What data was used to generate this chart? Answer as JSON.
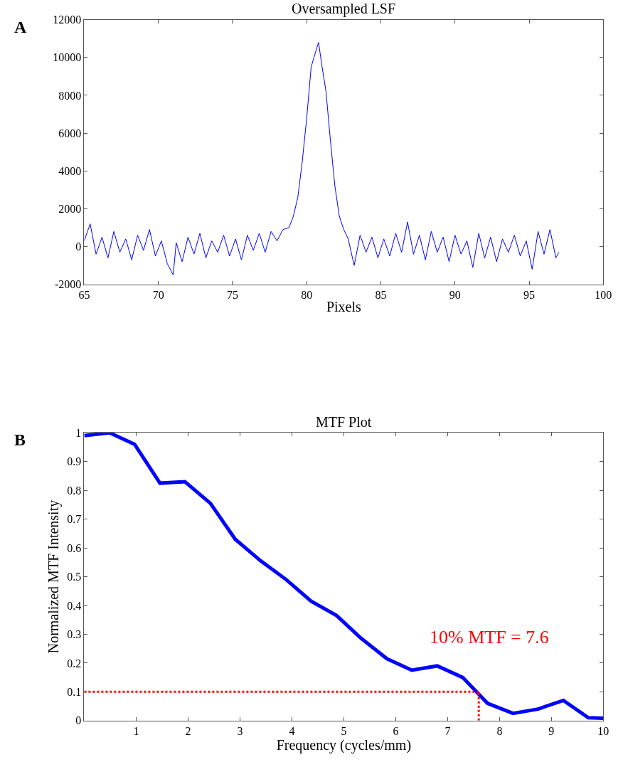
{
  "chart_data": [
    {
      "type": "line",
      "title": "Oversampled LSF",
      "xlabel": "Pixels",
      "annotations": [
        "A"
      ],
      "x": [
        65,
        65.4,
        65.8,
        66.2,
        66.6,
        67,
        67.4,
        67.8,
        68.2,
        68.6,
        69,
        69.4,
        69.8,
        70.2,
        70.6,
        71,
        71.2,
        71.6,
        72,
        72.4,
        72.8,
        73.2,
        73.6,
        74,
        74.4,
        74.8,
        75.2,
        75.6,
        76,
        76.4,
        76.8,
        77.2,
        77.6,
        78,
        78.4,
        78.8,
        79.1,
        79.4,
        79.7,
        80,
        80.3,
        80.6,
        80.8,
        81,
        81.3,
        81.6,
        81.9,
        82.2,
        82.5,
        82.8,
        83.2,
        83.6,
        84,
        84.4,
        84.8,
        85.2,
        85.6,
        86,
        86.4,
        86.8,
        87.2,
        87.6,
        88,
        88.4,
        88.8,
        89.2,
        89.6,
        90,
        90.4,
        90.8,
        91.2,
        91.6,
        92,
        92.4,
        92.8,
        93.2,
        93.6,
        94,
        94.4,
        94.8,
        95.2,
        95.6,
        96,
        96.4,
        96.8,
        97
      ],
      "series": [
        {
          "color": "#0000ff",
          "values": [
            300,
            1200,
            -400,
            500,
            -600,
            800,
            -300,
            400,
            -700,
            600,
            -200,
            900,
            -500,
            300,
            -900,
            -1500,
            200,
            -800,
            500,
            -400,
            700,
            -600,
            300,
            -300,
            600,
            -500,
            400,
            -700,
            600,
            -200,
            700,
            -300,
            800,
            300,
            900,
            1000,
            1600,
            2600,
            4500,
            6800,
            9500,
            10300,
            10800,
            9700,
            8200,
            5600,
            3200,
            1600,
            900,
            400,
            -1000,
            600,
            -300,
            500,
            -600,
            400,
            -500,
            700,
            -300,
            1300,
            -400,
            600,
            -700,
            800,
            -300,
            500,
            -800,
            600,
            -400,
            300,
            -1100,
            700,
            -600,
            500,
            -800,
            400,
            -300,
            600,
            -500,
            300,
            -1200,
            800,
            -400,
            900,
            -600,
            -300
          ]
        }
      ],
      "xlim": [
        65,
        100
      ],
      "xticks": [
        65,
        70,
        75,
        80,
        85,
        90,
        95,
        100
      ],
      "ylim": [
        -2000,
        12000
      ],
      "yticks": [
        -2000,
        0,
        2000,
        4000,
        6000,
        8000,
        10000,
        12000
      ],
      "marker": "none",
      "line_style": "solid"
    },
    {
      "type": "line",
      "title": "MTF Plot",
      "xlabel": "Frequency (cycles/mm)",
      "ylabel": "Normalized MTF Intensity",
      "annotations": [
        "B",
        "10% MTF = 7.6"
      ],
      "x": [
        0,
        0.49,
        0.97,
        1.46,
        1.94,
        2.43,
        2.91,
        3.4,
        3.89,
        4.37,
        4.86,
        5.34,
        5.83,
        6.31,
        6.8,
        7.29,
        7.77,
        8.26,
        8.74,
        9.23,
        9.71,
        10
      ],
      "series": [
        {
          "color": "#0000ff",
          "values": [
            0.99,
            1.0,
            0.96,
            0.825,
            0.83,
            0.755,
            0.63,
            0.555,
            0.49,
            0.415,
            0.365,
            0.285,
            0.215,
            0.175,
            0.19,
            0.15,
            0.06,
            0.025,
            0.04,
            0.07,
            0.01,
            0.008
          ]
        }
      ],
      "ref_lines": [
        {
          "axis": "y",
          "value": 0.1,
          "color": "#ff0000",
          "line_style": "dotted"
        },
        {
          "axis": "x",
          "value": 7.6,
          "color": "#ff0000",
          "line_style": "dotted"
        }
      ],
      "xlim": [
        0,
        10
      ],
      "xticks": [
        1,
        2,
        3,
        4,
        5,
        6,
        7,
        8,
        9,
        10
      ],
      "ylim": [
        0,
        1
      ],
      "yticks": [
        0,
        0.1,
        0.2,
        0.3,
        0.4,
        0.5,
        0.6,
        0.7,
        0.8,
        0.9,
        1
      ],
      "marker": "none",
      "line_style": "solid"
    }
  ]
}
